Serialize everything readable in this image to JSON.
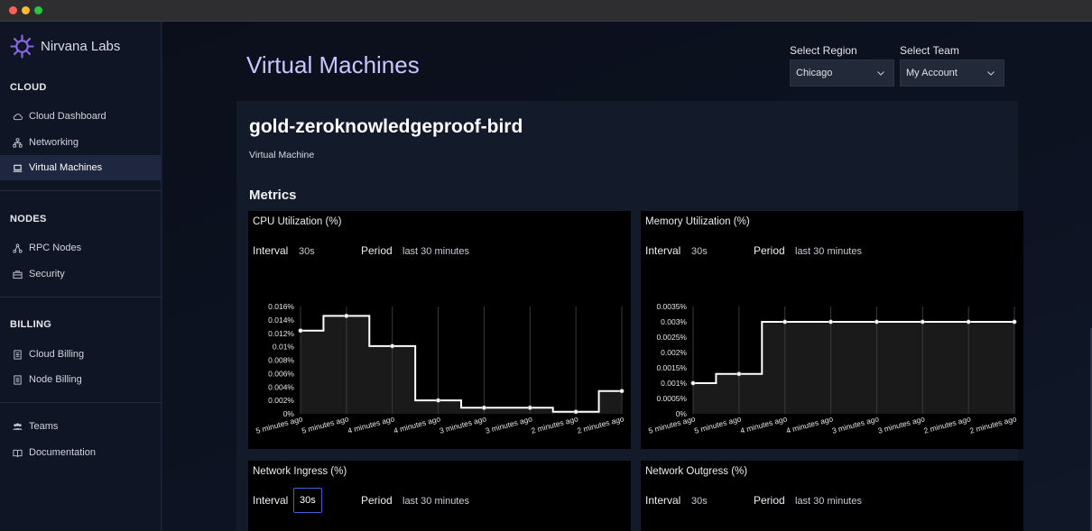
{
  "window": {
    "title": ""
  },
  "brand": {
    "name": "Nirvana Labs"
  },
  "sidebar": {
    "sections": [
      {
        "title": "CLOUD"
      },
      {
        "title": "NODES"
      },
      {
        "title": "BILLING"
      }
    ],
    "items": [
      {
        "label": "Cloud Dashboard",
        "icon": "cloud-icon"
      },
      {
        "label": "Networking",
        "icon": "network-icon"
      },
      {
        "label": "Virtual Machines",
        "icon": "laptop-icon",
        "active": true
      },
      {
        "label": "RPC Nodes",
        "icon": "node-icon"
      },
      {
        "label": "Security",
        "icon": "security-icon"
      },
      {
        "label": "Cloud Billing",
        "icon": "receipt-icon"
      },
      {
        "label": "Node Billing",
        "icon": "receipt-icon"
      },
      {
        "label": "Teams",
        "icon": "team-icon"
      },
      {
        "label": "Documentation",
        "icon": "book-icon"
      }
    ]
  },
  "header": {
    "title": "Virtual Machines",
    "region_label": "Select Region",
    "region_value": "Chicago",
    "team_label": "Select Team",
    "team_value": "My Account"
  },
  "vm": {
    "name": "gold-zeroknowledgeproof-bird",
    "type": "Virtual Machine",
    "metrics_title": "Metrics"
  },
  "cards": [
    {
      "title": "CPU Utilization (%)",
      "interval_label": "Interval",
      "interval": "30s",
      "period_label": "Period",
      "period": "last 30 minutes"
    },
    {
      "title": "Memory Utilization (%)",
      "interval_label": "Interval",
      "interval": "30s",
      "period_label": "Period",
      "period": "last 30 minutes"
    },
    {
      "title": "Network Ingress (%)",
      "interval_label": "Interval",
      "interval": "30s",
      "period_label": "Period",
      "period": "last 30 minutes"
    },
    {
      "title": "Network Outgress (%)",
      "interval_label": "Interval",
      "interval": "30s",
      "period_label": "Period",
      "period": "last 30 minutes"
    }
  ],
  "colors": {
    "accent": "#c9c6ff",
    "focus": "#3e63d8",
    "line": "#ffffff"
  },
  "chart_data": [
    {
      "type": "area",
      "title": "CPU Utilization (%)",
      "step": true,
      "x": [
        "5 minutes ago",
        "5 minutes ago",
        "4 minutes ago",
        "4 minutes ago",
        "3 minutes ago",
        "3 minutes ago",
        "2 minutes ago",
        "2 minutes ago"
      ],
      "values": [
        0.0124,
        0.0146,
        0.0101,
        0.002,
        0.0009,
        0.0009,
        0.0003,
        0.0034
      ],
      "yticks": [
        "0%",
        "0.002%",
        "0.004%",
        "0.006%",
        "0.008%",
        "0.01%",
        "0.012%",
        "0.014%",
        "0.016%"
      ],
      "ylim": [
        0,
        0.016
      ],
      "grid": true
    },
    {
      "type": "area",
      "title": "Memory Utilization (%)",
      "step": true,
      "x": [
        "5 minutes ago",
        "5 minutes ago",
        "4 minutes ago",
        "4 minutes ago",
        "3 minutes ago",
        "3 minutes ago",
        "2 minutes ago",
        "2 minutes ago"
      ],
      "values": [
        0.001,
        0.0013,
        0.003,
        0.003,
        0.003,
        0.003,
        0.003,
        0.003
      ],
      "yticks": [
        "0%",
        "0.0005%",
        "0.001%",
        "0.0015%",
        "0.002%",
        "0.0025%",
        "0.003%",
        "0.0035%"
      ],
      "ylim": [
        0,
        0.0035
      ],
      "grid": true
    }
  ]
}
